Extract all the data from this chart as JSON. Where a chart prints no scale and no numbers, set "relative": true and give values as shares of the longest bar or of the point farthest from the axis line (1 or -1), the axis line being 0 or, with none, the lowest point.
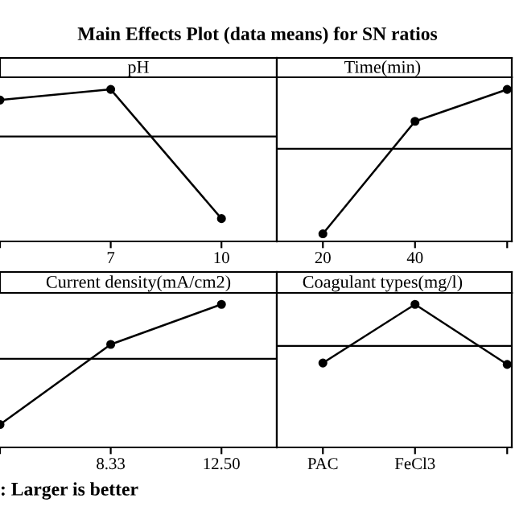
{
  "chart_data": [
    {
      "type": "line",
      "title": "Main Effects Plot (data means) for SN ratios",
      "xlabel": "pH",
      "categories": [
        null,
        "7",
        "10"
      ],
      "relative": true,
      "marker": "circle",
      "grid": false,
      "series": [
        {
          "color": "#000000",
          "values": [
            0.93,
            1.0,
            0.15
          ]
        }
      ],
      "ref_lines": [
        {
          "axis": "y",
          "value": 0.69,
          "color": "#000000"
        }
      ]
    },
    {
      "type": "line",
      "xlabel": "Time(min)",
      "categories": [
        "20",
        "40",
        null
      ],
      "relative": true,
      "marker": "circle",
      "grid": false,
      "series": [
        {
          "color": "#000000",
          "values": [
            0.05,
            0.79,
            1.0
          ]
        }
      ],
      "ref_lines": [
        {
          "axis": "y",
          "value": 0.61,
          "color": "#000000"
        }
      ]
    },
    {
      "type": "line",
      "xlabel": "Current density(mA/cm2)",
      "categories": [
        null,
        "8.33",
        "12.50"
      ],
      "relative": true,
      "marker": "circle",
      "grid": false,
      "series": [
        {
          "color": "#000000",
          "values": [
            0.16,
            0.72,
            1.0
          ]
        }
      ],
      "ref_lines": [
        {
          "axis": "y",
          "value": 0.62,
          "color": "#000000"
        }
      ],
      "annotations": [
        ": Larger is better"
      ]
    },
    {
      "type": "line",
      "xlabel": "Coagulant types(mg/l)",
      "categories": [
        "PAC",
        "FeCl3",
        null
      ],
      "relative": true,
      "marker": "circle",
      "grid": false,
      "series": [
        {
          "color": "#000000",
          "values": [
            0.59,
            1.0,
            0.58
          ]
        }
      ],
      "ref_lines": [
        {
          "axis": "y",
          "value": 0.71,
          "color": "#000000"
        }
      ]
    }
  ]
}
